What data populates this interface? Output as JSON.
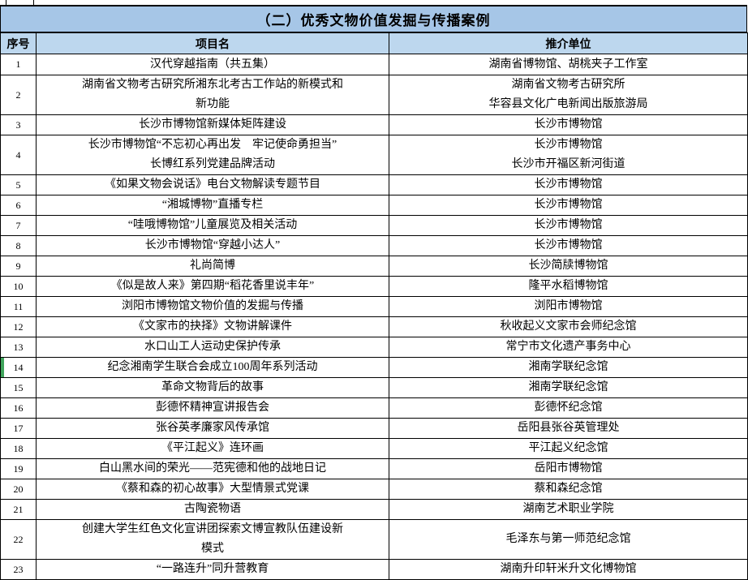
{
  "title": "（二）优秀文物价值发掘与传播案例",
  "columns": [
    "序号",
    "项目名",
    "推介单位"
  ],
  "colors": {
    "title_bg": "#A6C6E7",
    "header_bg": "#BDD7EE",
    "border": "#000000",
    "selection_green": "#3FA45B"
  },
  "rows": [
    {
      "no": "1",
      "project": [
        "汉代穿越指南（共五集）"
      ],
      "unit": [
        "湖南省博物馆、胡桃夹子工作室"
      ]
    },
    {
      "no": "2",
      "project": [
        "湖南省文物考古研究所湘东北考古工作站的新模式和",
        "新功能"
      ],
      "unit": [
        "湖南省文物考古研究所",
        "华容县文化广电新闻出版旅游局"
      ]
    },
    {
      "no": "3",
      "project": [
        "长沙市博物馆新媒体矩阵建设"
      ],
      "unit": [
        "长沙市博物馆"
      ]
    },
    {
      "no": "4",
      "project": [
        "长沙市博物馆“不忘初心再出发　牢记使命勇担当”",
        "长博红系列党建品牌活动"
      ],
      "unit": [
        "长沙市博物馆",
        "长沙市开福区新河街道"
      ]
    },
    {
      "no": "5",
      "project": [
        "《如果文物会说话》电台文物解读专题节目"
      ],
      "unit": [
        "长沙市博物馆"
      ]
    },
    {
      "no": "6",
      "project": [
        "“湘城博物”直播专栏"
      ],
      "unit": [
        "长沙市博物馆"
      ]
    },
    {
      "no": "7",
      "project": [
        "“哇哦博物馆”儿童展览及相关活动"
      ],
      "unit": [
        "长沙市博物馆"
      ]
    },
    {
      "no": "8",
      "project": [
        "长沙市博物馆“穿越小达人”"
      ],
      "unit": [
        "长沙市博物馆"
      ]
    },
    {
      "no": "9",
      "project": [
        "礼尚简博"
      ],
      "unit": [
        "长沙简牍博物馆"
      ]
    },
    {
      "no": "10",
      "project": [
        "《似是故人来》第四期“稻花香里说丰年”"
      ],
      "unit": [
        "隆平水稻博物馆"
      ]
    },
    {
      "no": "11",
      "project": [
        "浏阳市博物馆文物价值的发掘与传播"
      ],
      "unit": [
        "浏阳市博物馆"
      ]
    },
    {
      "no": "12",
      "project": [
        "《文家市的抉择》文物讲解课件"
      ],
      "unit": [
        "秋收起义文家市会师纪念馆"
      ]
    },
    {
      "no": "13",
      "project": [
        "水口山工人运动史保护传承"
      ],
      "unit": [
        "常宁市文化遗产事务中心"
      ]
    },
    {
      "no": "14",
      "project": [
        "纪念湘南学生联合会成立100周年系列活动"
      ],
      "unit": [
        "湘南学联纪念馆"
      ],
      "selected": true
    },
    {
      "no": "15",
      "project": [
        "革命文物背后的故事"
      ],
      "unit": [
        "湘南学联纪念馆"
      ]
    },
    {
      "no": "16",
      "project": [
        "彭德怀精神宣讲报告会"
      ],
      "unit": [
        "彭德怀纪念馆"
      ]
    },
    {
      "no": "17",
      "project": [
        "张谷英孝廉家风传承馆"
      ],
      "unit": [
        "岳阳县张谷英管理处"
      ]
    },
    {
      "no": "18",
      "project": [
        "《平江起义》连环画"
      ],
      "unit": [
        "平江起义纪念馆"
      ]
    },
    {
      "no": "19",
      "project": [
        "白山黑水间的荣光——范宪德和他的战地日记"
      ],
      "unit": [
        "岳阳市博物馆"
      ]
    },
    {
      "no": "20",
      "project": [
        "《蔡和森的初心故事》大型情景式党课"
      ],
      "unit": [
        "蔡和森纪念馆"
      ]
    },
    {
      "no": "21",
      "project": [
        "古陶瓷物语"
      ],
      "unit": [
        "湖南艺术职业学院"
      ]
    },
    {
      "no": "22",
      "project": [
        "创建大学生红色文化宣讲团探索文博宣教队伍建设新",
        "模式"
      ],
      "unit": [
        "毛泽东与第一师范纪念馆"
      ]
    },
    {
      "no": "23",
      "project": [
        "“一路连升”同升营教育"
      ],
      "unit": [
        "湖南升印轩米升文化博物馆"
      ]
    }
  ]
}
